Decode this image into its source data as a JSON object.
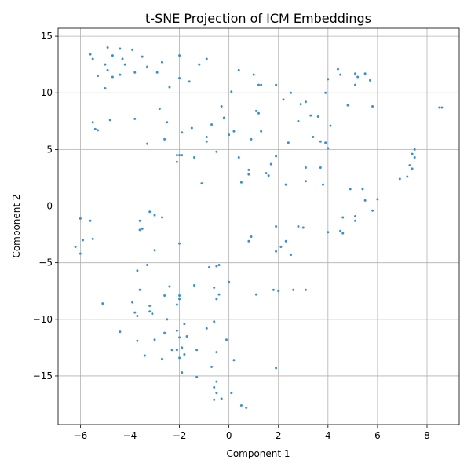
{
  "chart_data": {
    "type": "scatter",
    "title": "t-SNE Projection of ICM Embeddings",
    "xlabel": "Component 1",
    "ylabel": "Component 2",
    "xlim": [
      -6.9,
      9.3
    ],
    "ylim": [
      -19.3,
      15.7
    ],
    "xticks": [
      -6,
      -4,
      -2,
      0,
      2,
      4,
      6,
      8
    ],
    "yticks": [
      -15,
      -10,
      -5,
      0,
      5,
      10,
      15
    ],
    "grid": true,
    "marker_color": "#3a8fd0",
    "points": [
      [
        -5.6,
        13.4
      ],
      [
        -5.5,
        13.0
      ],
      [
        -4.9,
        14.0
      ],
      [
        -4.7,
        13.3
      ],
      [
        -4.4,
        13.9
      ],
      [
        -4.3,
        13.0
      ],
      [
        -3.9,
        13.8
      ],
      [
        -3.5,
        13.2
      ],
      [
        -2.7,
        12.7
      ],
      [
        -2.0,
        13.3
      ],
      [
        -0.9,
        13.0
      ],
      [
        -5.0,
        12.5
      ],
      [
        -4.2,
        12.5
      ],
      [
        -3.3,
        12.3
      ],
      [
        -1.2,
        12.5
      ],
      [
        0.4,
        12.0
      ],
      [
        -4.9,
        12.0
      ],
      [
        -5.3,
        11.5
      ],
      [
        -4.7,
        11.4
      ],
      [
        -4.4,
        11.6
      ],
      [
        -3.8,
        11.8
      ],
      [
        -2.9,
        11.8
      ],
      [
        -2.0,
        11.3
      ],
      [
        -1.6,
        11.0
      ],
      [
        1.0,
        11.6
      ],
      [
        1.3,
        10.7
      ],
      [
        1.2,
        10.7
      ],
      [
        1.9,
        10.7
      ],
      [
        -5.0,
        10.4
      ],
      [
        -2.4,
        10.5
      ],
      [
        0.1,
        10.1
      ],
      [
        2.5,
        10.0
      ],
      [
        3.9,
        10.0
      ],
      [
        2.2,
        9.4
      ],
      [
        3.1,
        9.2
      ],
      [
        2.9,
        9.0
      ],
      [
        4.8,
        8.9
      ],
      [
        5.8,
        8.8
      ],
      [
        8.5,
        8.7
      ],
      [
        8.6,
        8.7
      ],
      [
        4.4,
        12.1
      ],
      [
        4.5,
        11.6
      ],
      [
        5.1,
        11.7
      ],
      [
        5.2,
        11.4
      ],
      [
        5.5,
        11.7
      ],
      [
        5.7,
        11.1
      ],
      [
        5.1,
        10.7
      ],
      [
        4.0,
        11.2
      ],
      [
        -2.8,
        8.6
      ],
      [
        -0.3,
        8.8
      ],
      [
        1.1,
        8.4
      ],
      [
        1.2,
        8.2
      ],
      [
        -5.5,
        7.4
      ],
      [
        -5.4,
        6.8
      ],
      [
        -5.3,
        6.7
      ],
      [
        -4.8,
        7.6
      ],
      [
        -3.8,
        7.7
      ],
      [
        -2.5,
        7.4
      ],
      [
        -0.2,
        7.8
      ],
      [
        -0.7,
        7.2
      ],
      [
        0.0,
        6.3
      ],
      [
        0.2,
        6.6
      ],
      [
        -1.9,
        6.5
      ],
      [
        -1.5,
        6.9
      ],
      [
        1.3,
        6.6
      ],
      [
        2.8,
        7.5
      ],
      [
        3.3,
        8.0
      ],
      [
        3.6,
        7.9
      ],
      [
        4.1,
        7.1
      ],
      [
        -0.9,
        6.1
      ],
      [
        -0.9,
        5.7
      ],
      [
        -2.6,
        5.9
      ],
      [
        -3.3,
        5.5
      ],
      [
        0.9,
        5.9
      ],
      [
        2.4,
        5.6
      ],
      [
        3.4,
        6.1
      ],
      [
        3.7,
        5.7
      ],
      [
        3.9,
        5.6
      ],
      [
        -0.5,
        4.8
      ],
      [
        -2.1,
        4.5
      ],
      [
        -2.0,
        4.5
      ],
      [
        -1.9,
        4.5
      ],
      [
        -1.4,
        4.3
      ],
      [
        -2.1,
        3.9
      ],
      [
        0.4,
        4.3
      ],
      [
        1.9,
        4.4
      ],
      [
        4.0,
        5.1
      ],
      [
        1.7,
        3.7
      ],
      [
        3.1,
        3.4
      ],
      [
        3.7,
        3.4
      ],
      [
        0.8,
        3.2
      ],
      [
        0.8,
        2.8
      ],
      [
        1.5,
        2.9
      ],
      [
        1.6,
        2.7
      ],
      [
        3.1,
        2.2
      ],
      [
        0.5,
        2.1
      ],
      [
        2.3,
        1.9
      ],
      [
        3.8,
        1.9
      ],
      [
        -1.1,
        2.0
      ],
      [
        4.9,
        1.5
      ],
      [
        5.4,
        1.5
      ],
      [
        5.5,
        0.5
      ],
      [
        6.0,
        0.6
      ],
      [
        6.9,
        2.4
      ],
      [
        7.2,
        2.6
      ],
      [
        7.3,
        3.6
      ],
      [
        7.4,
        3.3
      ],
      [
        7.5,
        4.3
      ],
      [
        7.5,
        5.0
      ],
      [
        7.4,
        4.6
      ],
      [
        -6.0,
        -1.1
      ],
      [
        -5.6,
        -1.3
      ],
      [
        -5.9,
        -3.0
      ],
      [
        -5.5,
        -2.9
      ],
      [
        -6.2,
        -3.6
      ],
      [
        -6.0,
        -4.2
      ],
      [
        -3.6,
        -1.3
      ],
      [
        -3.2,
        -0.5
      ],
      [
        -3.0,
        -0.8
      ],
      [
        -2.7,
        -1.0
      ],
      [
        -3.5,
        -2.0
      ],
      [
        -3.6,
        -2.1
      ],
      [
        -2.0,
        -3.3
      ],
      [
        -3.0,
        -3.9
      ],
      [
        -3.3,
        -5.2
      ],
      [
        -3.7,
        -5.7
      ],
      [
        -0.5,
        -5.3
      ],
      [
        -0.4,
        -5.2
      ],
      [
        -0.8,
        -5.4
      ],
      [
        0.0,
        -6.7
      ],
      [
        -1.4,
        -7.0
      ],
      [
        -2.4,
        -7.1
      ],
      [
        -3.6,
        -7.4
      ],
      [
        -0.6,
        -7.2
      ],
      [
        -0.4,
        -7.8
      ],
      [
        -0.5,
        -8.2
      ],
      [
        -2.6,
        -7.9
      ],
      [
        -2.0,
        -7.9
      ],
      [
        -2.0,
        -8.2
      ],
      [
        -2.1,
        -8.7
      ],
      [
        0.9,
        -2.7
      ],
      [
        0.8,
        -3.1
      ],
      [
        1.9,
        -1.8
      ],
      [
        2.8,
        -1.8
      ],
      [
        3.0,
        -1.9
      ],
      [
        2.3,
        -3.1
      ],
      [
        2.1,
        -3.6
      ],
      [
        1.9,
        -4.0
      ],
      [
        2.5,
        -4.3
      ],
      [
        4.0,
        -2.3
      ],
      [
        4.5,
        -2.2
      ],
      [
        4.6,
        -2.4
      ],
      [
        5.1,
        -0.9
      ],
      [
        5.1,
        -1.3
      ],
      [
        4.6,
        -1.0
      ],
      [
        5.8,
        -0.4
      ],
      [
        1.8,
        -7.4
      ],
      [
        2.0,
        -7.5
      ],
      [
        2.6,
        -7.4
      ],
      [
        3.1,
        -7.4
      ],
      [
        1.1,
        -7.8
      ],
      [
        -5.1,
        -8.6
      ],
      [
        -3.9,
        -8.5
      ],
      [
        -3.2,
        -8.8
      ],
      [
        -3.2,
        -9.3
      ],
      [
        -3.1,
        -9.5
      ],
      [
        -3.8,
        -9.4
      ],
      [
        -3.7,
        -9.7
      ],
      [
        -4.4,
        -11.1
      ],
      [
        -3.7,
        -11.9
      ],
      [
        -3.4,
        -13.2
      ],
      [
        -3.0,
        -11.8
      ],
      [
        -2.6,
        -11.2
      ],
      [
        -2.5,
        -10.0
      ],
      [
        -1.8,
        -10.4
      ],
      [
        -2.0,
        -11.6
      ],
      [
        -1.7,
        -11.5
      ],
      [
        -2.1,
        -11.0
      ],
      [
        -0.9,
        -10.8
      ],
      [
        -0.6,
        -10.2
      ],
      [
        -1.3,
        -12.7
      ],
      [
        -1.9,
        -12.5
      ],
      [
        -2.3,
        -12.7
      ],
      [
        -2.1,
        -12.7
      ],
      [
        -0.1,
        -11.8
      ],
      [
        -2.7,
        -13.5
      ],
      [
        -2.0,
        -13.4
      ],
      [
        -1.8,
        -13.1
      ],
      [
        -0.5,
        -12.9
      ],
      [
        0.2,
        -13.6
      ],
      [
        -0.7,
        -14.2
      ],
      [
        -1.9,
        -14.7
      ],
      [
        1.9,
        -14.3
      ],
      [
        -1.3,
        -15.1
      ],
      [
        -0.5,
        -15.5
      ],
      [
        -0.6,
        -16.0
      ],
      [
        -0.5,
        -16.5
      ],
      [
        0.1,
        -16.5
      ],
      [
        -0.6,
        -17.1
      ],
      [
        -0.3,
        -17.0
      ],
      [
        0.5,
        -17.6
      ],
      [
        0.7,
        -17.8
      ]
    ]
  }
}
